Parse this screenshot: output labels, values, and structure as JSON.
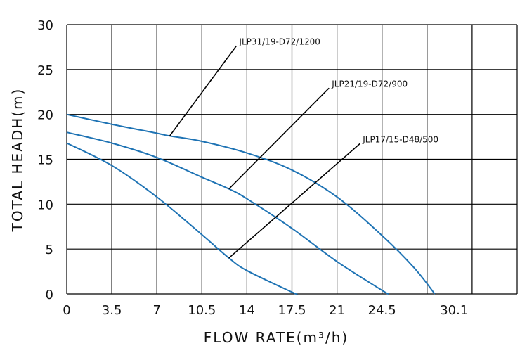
{
  "chart_data": {
    "type": "line",
    "title": "",
    "xlabel": "FLOW RATE(m³/h)",
    "ylabel": "TOTAL HEADH(m)",
    "x_tick_labels": [
      "0",
      "3.5",
      "7",
      "10.5",
      "14",
      "17.5",
      "21",
      "24.5",
      "30.1"
    ],
    "y_tick_labels": [
      "0",
      "5",
      "10",
      "15",
      "20",
      "25",
      "30"
    ],
    "xlim": [
      0,
      35
    ],
    "ylim": [
      0,
      30
    ],
    "grid": true,
    "legend": "none",
    "line_color": "#1e73b4",
    "series": [
      {
        "name": "JLP31/19-D72/1200",
        "points": [
          [
            0,
            20.0
          ],
          [
            3.5,
            18.9
          ],
          [
            7,
            17.9
          ],
          [
            8,
            17.6
          ],
          [
            10.5,
            17.0
          ],
          [
            14,
            15.7
          ],
          [
            17.5,
            13.8
          ],
          [
            21,
            10.8
          ],
          [
            24.5,
            6.5
          ],
          [
            27,
            2.9
          ],
          [
            28.6,
            0.0
          ]
        ],
        "label_anchor": [
          8,
          17.6
        ],
        "label_pos": [
          13.4,
          28.1
        ]
      },
      {
        "name": "JLP21/19-D72/900",
        "points": [
          [
            0,
            18.0
          ],
          [
            3.5,
            16.8
          ],
          [
            7,
            15.2
          ],
          [
            10.5,
            13.0
          ],
          [
            12.6,
            11.7
          ],
          [
            14,
            10.6
          ],
          [
            17.5,
            7.3
          ],
          [
            21,
            3.6
          ],
          [
            24.5,
            0.4
          ],
          [
            25,
            0.0
          ]
        ],
        "label_anchor": [
          12.6,
          11.7
        ],
        "label_pos": [
          20.6,
          23.4
        ]
      },
      {
        "name": "JLP17/15-D48/500",
        "points": [
          [
            0,
            16.8
          ],
          [
            3.5,
            14.3
          ],
          [
            7,
            10.8
          ],
          [
            10.5,
            6.6
          ],
          [
            12.6,
            4.0
          ],
          [
            14,
            2.6
          ],
          [
            17.5,
            0.2
          ],
          [
            17.9,
            0.0
          ]
        ],
        "label_anchor": [
          12.6,
          4.0
        ],
        "label_pos": [
          23.0,
          17.2
        ]
      }
    ]
  }
}
